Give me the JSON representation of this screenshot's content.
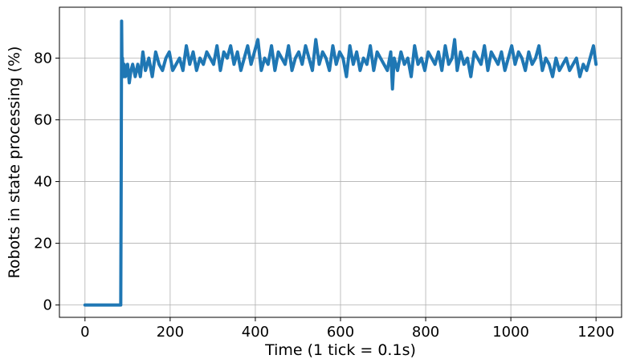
{
  "chart_data": {
    "type": "line",
    "title": "",
    "xlabel": "Time (1 tick = 0.1s)",
    "ylabel": "Robots in state processing (%)",
    "xlim": [
      -60,
      1260
    ],
    "ylim": [
      -4,
      96.5
    ],
    "xticks": [
      0,
      200,
      400,
      600,
      800,
      1000,
      1200
    ],
    "yticks": [
      0,
      20,
      40,
      60,
      80
    ],
    "grid": true,
    "legend": "none",
    "line_color": "#1f77b4",
    "series": [
      {
        "x": [
          0,
          84,
          85,
          86,
          87,
          88,
          90,
          92,
          95,
          98,
          100,
          104,
          108,
          112,
          118,
          124,
          130,
          136,
          142,
          150,
          158,
          166,
          174,
          182,
          190,
          198,
          206,
          214,
          222,
          230,
          238,
          246,
          254,
          262,
          270,
          278,
          286,
          294,
          302,
          310,
          318,
          326,
          334,
          342,
          350,
          358,
          366,
          374,
          382,
          390,
          398,
          406,
          414,
          422,
          430,
          438,
          446,
          454,
          462,
          470,
          478,
          486,
          494,
          502,
          510,
          518,
          526,
          534,
          542,
          550,
          558,
          566,
          574,
          582,
          590,
          598,
          606,
          614,
          622,
          630,
          638,
          646,
          654,
          662,
          670,
          678,
          686,
          694,
          702,
          710,
          718,
          722,
          726,
          734,
          742,
          750,
          758,
          766,
          774,
          782,
          790,
          798,
          806,
          814,
          822,
          830,
          838,
          846,
          854,
          862,
          868,
          874,
          882,
          890,
          898,
          906,
          914,
          922,
          930,
          938,
          946,
          954,
          962,
          970,
          978,
          986,
          994,
          1002,
          1010,
          1018,
          1026,
          1034,
          1042,
          1050,
          1058,
          1066,
          1074,
          1082,
          1090,
          1098,
          1106,
          1114,
          1122,
          1130,
          1138,
          1146,
          1154,
          1162,
          1170,
          1178,
          1186,
          1194,
          1200
        ],
        "y": [
          0,
          0,
          40,
          92,
          76,
          80,
          74,
          78,
          74,
          76,
          78,
          72,
          76,
          78,
          74,
          78,
          74,
          82,
          76,
          80,
          74,
          82,
          78,
          76,
          80,
          82,
          76,
          78,
          80,
          76,
          84,
          78,
          82,
          76,
          80,
          78,
          82,
          80,
          78,
          84,
          76,
          82,
          80,
          84,
          78,
          82,
          76,
          80,
          84,
          78,
          82,
          86,
          76,
          80,
          78,
          84,
          76,
          82,
          80,
          78,
          84,
          76,
          80,
          82,
          78,
          84,
          80,
          76,
          86,
          78,
          82,
          80,
          76,
          84,
          78,
          82,
          80,
          74,
          84,
          78,
          82,
          76,
          80,
          78,
          84,
          76,
          82,
          80,
          78,
          76,
          82,
          70,
          80,
          76,
          82,
          78,
          80,
          74,
          84,
          78,
          80,
          76,
          82,
          80,
          78,
          82,
          76,
          84,
          78,
          80,
          86,
          76,
          82,
          78,
          80,
          74,
          82,
          80,
          78,
          84,
          76,
          82,
          80,
          78,
          82,
          76,
          80,
          84,
          78,
          82,
          80,
          76,
          82,
          78,
          80,
          84,
          76,
          80,
          78,
          74,
          80,
          76,
          78,
          80,
          76,
          78,
          80,
          74,
          78,
          76,
          80,
          84,
          78
        ]
      }
    ]
  }
}
